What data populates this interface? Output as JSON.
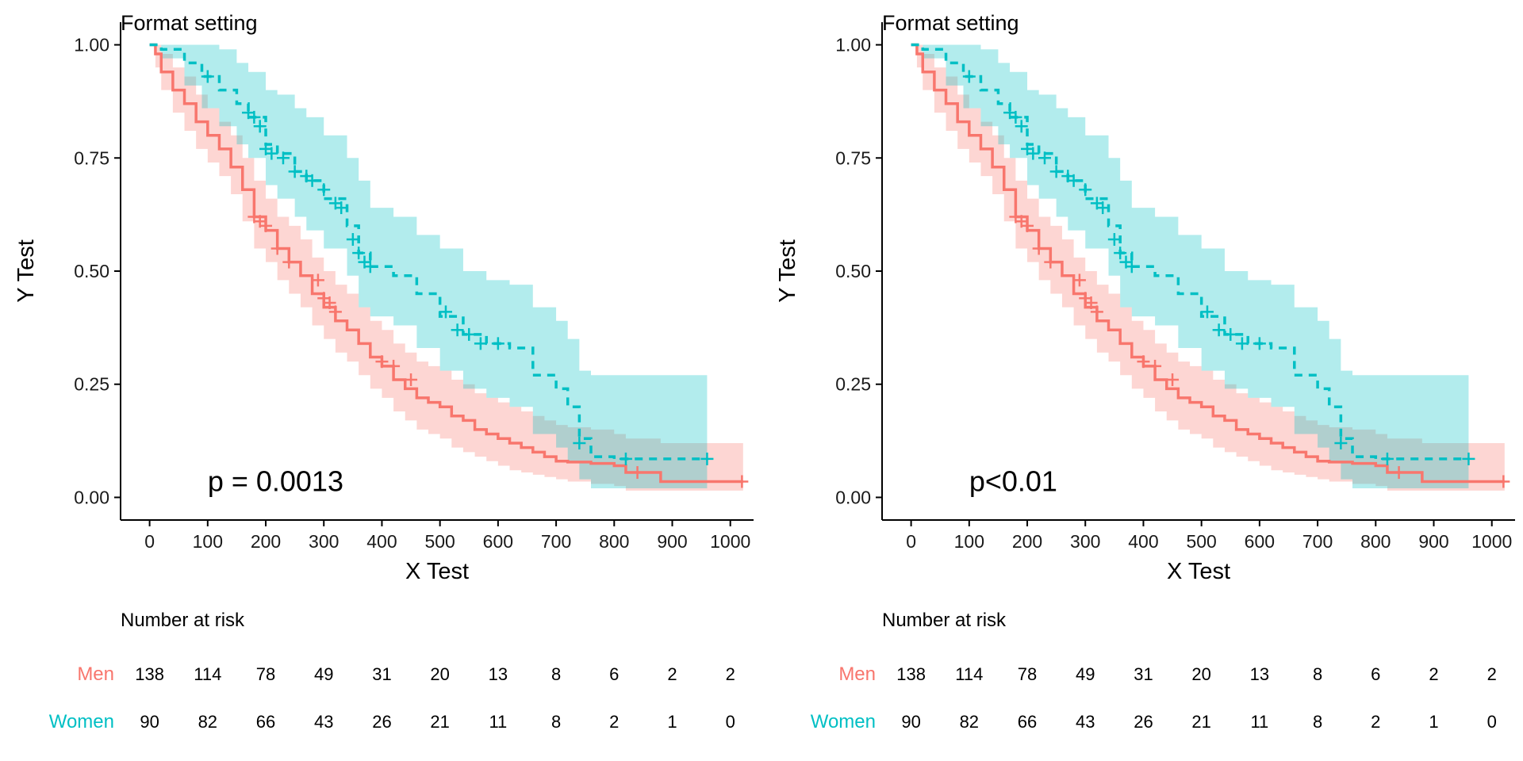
{
  "colors": {
    "men": "#F8766D",
    "women": "#00BFC4",
    "axis": "#000000",
    "text": "#1a1a1a",
    "men_ci": "#F8766D",
    "women_ci": "#00BFC4"
  },
  "panels": [
    {
      "title": "Format setting",
      "xlabel": "X Test",
      "ylabel": "Y Test",
      "pvalue": "p = 0.0013",
      "risk_title": "Number at risk",
      "risk_rows": [
        {
          "label": "Men",
          "values": [
            "138",
            "114",
            "78",
            "49",
            "31",
            "20",
            "13",
            "8",
            "6",
            "2",
            "2"
          ]
        },
        {
          "label": "Women",
          "values": [
            "90",
            "82",
            "66",
            "43",
            "26",
            "21",
            "11",
            "8",
            "2",
            "1",
            "0"
          ]
        }
      ]
    },
    {
      "title": "Format setting",
      "xlabel": "X Test",
      "ylabel": "Y Test",
      "pvalue": "p<0.01",
      "risk_title": "Number at risk",
      "risk_rows": [
        {
          "label": "Men",
          "values": [
            "138",
            "114",
            "78",
            "49",
            "31",
            "20",
            "13",
            "8",
            "6",
            "2",
            "2"
          ]
        },
        {
          "label": "Women",
          "values": [
            "90",
            "82",
            "66",
            "43",
            "26",
            "21",
            "11",
            "8",
            "2",
            "1",
            "0"
          ]
        }
      ]
    }
  ],
  "chart_data": [
    {
      "type": "line",
      "title": "Format setting",
      "xlabel": "X Test",
      "ylabel": "Y Test",
      "xlim": [
        -50,
        1040
      ],
      "ylim": [
        -0.05,
        1.05
      ],
      "x_ticks": [
        "0",
        "100",
        "200",
        "300",
        "400",
        "500",
        "600",
        "700",
        "800",
        "900",
        "1000"
      ],
      "y_ticks": [
        "0.00",
        "0.25",
        "0.50",
        "0.75",
        "1.00"
      ],
      "annotation": "p = 0.0013",
      "series": [
        {
          "name": "Men",
          "style": "solid",
          "x": [
            0,
            10,
            20,
            40,
            60,
            80,
            100,
            120,
            140,
            160,
            180,
            200,
            220,
            240,
            260,
            280,
            300,
            320,
            340,
            360,
            380,
            400,
            420,
            440,
            460,
            480,
            500,
            520,
            540,
            560,
            580,
            600,
            620,
            640,
            660,
            680,
            700,
            720,
            760,
            800,
            820,
            880,
            960,
            1022
          ],
          "y": [
            1.0,
            0.98,
            0.94,
            0.9,
            0.87,
            0.83,
            0.8,
            0.77,
            0.73,
            0.68,
            0.62,
            0.59,
            0.55,
            0.52,
            0.49,
            0.45,
            0.42,
            0.39,
            0.37,
            0.34,
            0.31,
            0.29,
            0.26,
            0.24,
            0.22,
            0.21,
            0.2,
            0.18,
            0.17,
            0.15,
            0.14,
            0.13,
            0.12,
            0.11,
            0.1,
            0.09,
            0.08,
            0.078,
            0.075,
            0.07,
            0.055,
            0.035,
            0.035,
            0.035
          ],
          "ci_upper": [
            1.0,
            1.0,
            0.98,
            0.95,
            0.93,
            0.89,
            0.86,
            0.83,
            0.8,
            0.75,
            0.7,
            0.66,
            0.62,
            0.6,
            0.57,
            0.53,
            0.5,
            0.47,
            0.45,
            0.42,
            0.39,
            0.37,
            0.34,
            0.32,
            0.3,
            0.29,
            0.28,
            0.26,
            0.25,
            0.23,
            0.22,
            0.21,
            0.2,
            0.19,
            0.18,
            0.17,
            0.16,
            0.155,
            0.15,
            0.14,
            0.13,
            0.12,
            0.12,
            0.12
          ],
          "ci_lower": [
            1.0,
            0.95,
            0.9,
            0.85,
            0.81,
            0.77,
            0.74,
            0.71,
            0.67,
            0.61,
            0.55,
            0.52,
            0.48,
            0.45,
            0.42,
            0.38,
            0.35,
            0.32,
            0.3,
            0.27,
            0.24,
            0.22,
            0.19,
            0.17,
            0.15,
            0.14,
            0.13,
            0.11,
            0.1,
            0.09,
            0.08,
            0.07,
            0.06,
            0.055,
            0.05,
            0.045,
            0.04,
            0.035,
            0.03,
            0.025,
            0.015,
            0.015,
            0.015,
            0.015
          ],
          "censor_x": [
            180,
            190,
            200,
            220,
            240,
            290,
            300,
            310,
            320,
            400,
            420,
            450,
            840,
            1020
          ],
          "censor_y": [
            0.62,
            0.61,
            0.6,
            0.55,
            0.52,
            0.48,
            0.44,
            0.43,
            0.41,
            0.3,
            0.29,
            0.26,
            0.055,
            0.035
          ]
        },
        {
          "name": "Women",
          "style": "dashed",
          "x": [
            0,
            20,
            60,
            90,
            120,
            150,
            170,
            200,
            220,
            250,
            270,
            300,
            340,
            360,
            380,
            420,
            460,
            500,
            540,
            580,
            620,
            660,
            700,
            720,
            740,
            760,
            800,
            960
          ],
          "y": [
            1.0,
            0.99,
            0.96,
            0.93,
            0.9,
            0.87,
            0.84,
            0.78,
            0.76,
            0.72,
            0.7,
            0.66,
            0.6,
            0.54,
            0.51,
            0.49,
            0.45,
            0.4,
            0.36,
            0.34,
            0.33,
            0.27,
            0.24,
            0.2,
            0.13,
            0.09,
            0.085,
            0.085
          ],
          "ci_upper": [
            1.0,
            1.0,
            1.0,
            1.0,
            0.99,
            0.96,
            0.94,
            0.9,
            0.89,
            0.86,
            0.84,
            0.8,
            0.75,
            0.7,
            0.64,
            0.62,
            0.58,
            0.55,
            0.5,
            0.48,
            0.47,
            0.42,
            0.39,
            0.35,
            0.28,
            0.27,
            0.27,
            0.27
          ],
          "ci_lower": [
            1.0,
            0.97,
            0.91,
            0.86,
            0.82,
            0.78,
            0.75,
            0.69,
            0.66,
            0.62,
            0.59,
            0.55,
            0.49,
            0.42,
            0.4,
            0.38,
            0.33,
            0.28,
            0.24,
            0.22,
            0.2,
            0.14,
            0.11,
            0.08,
            0.04,
            0.02,
            0.02,
            0.02
          ],
          "censor_x": [
            100,
            170,
            180,
            190,
            200,
            210,
            230,
            250,
            270,
            280,
            300,
            320,
            330,
            350,
            360,
            370,
            380,
            510,
            530,
            550,
            570,
            600,
            740,
            820,
            960
          ],
          "censor_y": [
            0.93,
            0.85,
            0.84,
            0.82,
            0.77,
            0.76,
            0.75,
            0.72,
            0.71,
            0.7,
            0.68,
            0.65,
            0.64,
            0.57,
            0.54,
            0.52,
            0.51,
            0.41,
            0.37,
            0.36,
            0.34,
            0.34,
            0.12,
            0.085,
            0.085
          ]
        }
      ]
    },
    {
      "type": "line",
      "title": "Format setting",
      "xlabel": "X Test",
      "ylabel": "Y Test",
      "xlim": [
        -50,
        1040
      ],
      "ylim": [
        -0.05,
        1.05
      ],
      "x_ticks": [
        "0",
        "100",
        "200",
        "300",
        "400",
        "500",
        "600",
        "700",
        "800",
        "900",
        "1000"
      ],
      "y_ticks": [
        "0.00",
        "0.25",
        "0.50",
        "0.75",
        "1.00"
      ],
      "annotation": "p<0.01",
      "series": [
        {
          "name": "Men",
          "style": "solid",
          "x": [
            0,
            10,
            20,
            40,
            60,
            80,
            100,
            120,
            140,
            160,
            180,
            200,
            220,
            240,
            260,
            280,
            300,
            320,
            340,
            360,
            380,
            400,
            420,
            440,
            460,
            480,
            500,
            520,
            540,
            560,
            580,
            600,
            620,
            640,
            660,
            680,
            700,
            720,
            760,
            800,
            820,
            880,
            960,
            1022
          ],
          "y": [
            1.0,
            0.98,
            0.94,
            0.9,
            0.87,
            0.83,
            0.8,
            0.77,
            0.73,
            0.68,
            0.62,
            0.59,
            0.55,
            0.52,
            0.49,
            0.45,
            0.42,
            0.39,
            0.37,
            0.34,
            0.31,
            0.29,
            0.26,
            0.24,
            0.22,
            0.21,
            0.2,
            0.18,
            0.17,
            0.15,
            0.14,
            0.13,
            0.12,
            0.11,
            0.1,
            0.09,
            0.08,
            0.078,
            0.075,
            0.07,
            0.055,
            0.035,
            0.035,
            0.035
          ],
          "ci_upper": [
            1.0,
            1.0,
            0.98,
            0.95,
            0.93,
            0.89,
            0.86,
            0.83,
            0.8,
            0.75,
            0.7,
            0.66,
            0.62,
            0.6,
            0.57,
            0.53,
            0.5,
            0.47,
            0.45,
            0.42,
            0.39,
            0.37,
            0.34,
            0.32,
            0.3,
            0.29,
            0.28,
            0.26,
            0.25,
            0.23,
            0.22,
            0.21,
            0.2,
            0.19,
            0.18,
            0.17,
            0.16,
            0.155,
            0.15,
            0.14,
            0.13,
            0.12,
            0.12,
            0.12
          ],
          "ci_lower": [
            1.0,
            0.95,
            0.9,
            0.85,
            0.81,
            0.77,
            0.74,
            0.71,
            0.67,
            0.61,
            0.55,
            0.52,
            0.48,
            0.45,
            0.42,
            0.38,
            0.35,
            0.32,
            0.3,
            0.27,
            0.24,
            0.22,
            0.19,
            0.17,
            0.15,
            0.14,
            0.13,
            0.11,
            0.1,
            0.09,
            0.08,
            0.07,
            0.06,
            0.055,
            0.05,
            0.045,
            0.04,
            0.035,
            0.03,
            0.025,
            0.015,
            0.015,
            0.015,
            0.015
          ],
          "censor_x": [
            180,
            190,
            200,
            220,
            240,
            290,
            300,
            310,
            320,
            400,
            420,
            450,
            840,
            1020
          ],
          "censor_y": [
            0.62,
            0.61,
            0.6,
            0.55,
            0.52,
            0.48,
            0.44,
            0.43,
            0.41,
            0.3,
            0.29,
            0.26,
            0.055,
            0.035
          ]
        },
        {
          "name": "Women",
          "style": "dashed",
          "x": [
            0,
            20,
            60,
            90,
            120,
            150,
            170,
            200,
            220,
            250,
            270,
            300,
            340,
            360,
            380,
            420,
            460,
            500,
            540,
            580,
            620,
            660,
            700,
            720,
            740,
            760,
            800,
            960
          ],
          "y": [
            1.0,
            0.99,
            0.96,
            0.93,
            0.9,
            0.87,
            0.84,
            0.78,
            0.76,
            0.72,
            0.7,
            0.66,
            0.6,
            0.54,
            0.51,
            0.49,
            0.45,
            0.4,
            0.36,
            0.34,
            0.33,
            0.27,
            0.24,
            0.2,
            0.13,
            0.09,
            0.085,
            0.085
          ],
          "ci_upper": [
            1.0,
            1.0,
            1.0,
            1.0,
            0.99,
            0.96,
            0.94,
            0.9,
            0.89,
            0.86,
            0.84,
            0.8,
            0.75,
            0.7,
            0.64,
            0.62,
            0.58,
            0.55,
            0.5,
            0.48,
            0.47,
            0.42,
            0.39,
            0.35,
            0.28,
            0.27,
            0.27,
            0.27
          ],
          "ci_lower": [
            1.0,
            0.97,
            0.91,
            0.86,
            0.82,
            0.78,
            0.75,
            0.69,
            0.66,
            0.62,
            0.59,
            0.55,
            0.49,
            0.42,
            0.4,
            0.38,
            0.33,
            0.28,
            0.24,
            0.22,
            0.2,
            0.14,
            0.11,
            0.08,
            0.04,
            0.02,
            0.02,
            0.02
          ],
          "censor_x": [
            100,
            170,
            180,
            190,
            200,
            210,
            230,
            250,
            270,
            280,
            300,
            320,
            330,
            350,
            360,
            370,
            380,
            510,
            530,
            550,
            570,
            600,
            740,
            820,
            960
          ],
          "censor_y": [
            0.93,
            0.85,
            0.84,
            0.82,
            0.77,
            0.76,
            0.75,
            0.72,
            0.71,
            0.7,
            0.68,
            0.65,
            0.64,
            0.57,
            0.54,
            0.52,
            0.51,
            0.41,
            0.37,
            0.36,
            0.34,
            0.34,
            0.12,
            0.085,
            0.085
          ]
        }
      ]
    }
  ]
}
